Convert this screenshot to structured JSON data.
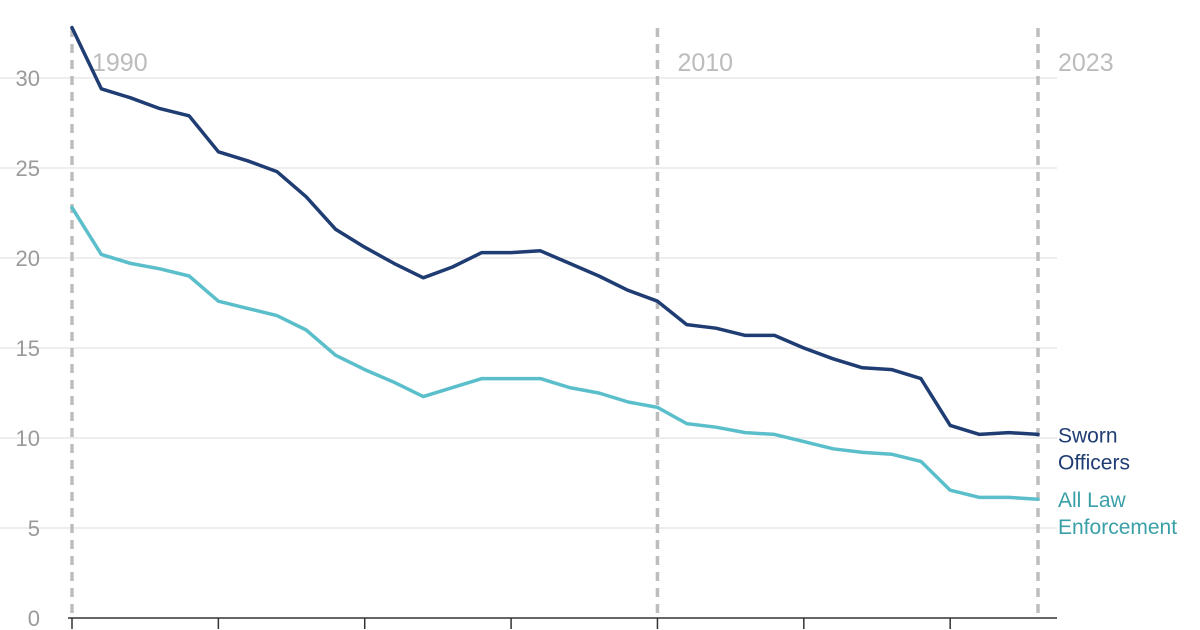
{
  "chart_data": {
    "type": "line",
    "title": "",
    "xlabel": "",
    "ylabel": "",
    "x": [
      1990,
      1991,
      1992,
      1993,
      1994,
      1995,
      1996,
      1997,
      1998,
      1999,
      2000,
      2001,
      2002,
      2003,
      2004,
      2005,
      2006,
      2007,
      2008,
      2009,
      2010,
      2011,
      2012,
      2013,
      2014,
      2015,
      2016,
      2017,
      2018,
      2019,
      2020,
      2021,
      2022,
      2023
    ],
    "xlim": [
      1990,
      2023
    ],
    "ylim": [
      0,
      33
    ],
    "yticks": [
      0,
      5,
      10,
      15,
      20,
      25,
      30
    ],
    "xtick_marks": [
      1990,
      1995,
      2000,
      2005,
      2010,
      2015,
      2020
    ],
    "grid": true,
    "reference_lines": [
      {
        "x": 1990,
        "label": "1990"
      },
      {
        "x": 2010,
        "label": "2010"
      },
      {
        "x": 2023,
        "label": "2023"
      }
    ],
    "series": [
      {
        "name": "Sworn Officers",
        "label_lines": [
          "Sworn",
          "Officers"
        ],
        "color": "#1f3d73",
        "values": [
          32.8,
          29.4,
          28.9,
          28.3,
          27.9,
          25.9,
          25.4,
          24.8,
          23.4,
          21.6,
          20.6,
          19.7,
          18.9,
          19.5,
          20.3,
          20.3,
          20.4,
          19.7,
          19.0,
          18.2,
          17.6,
          16.3,
          16.1,
          15.7,
          15.7,
          15.0,
          14.4,
          13.9,
          13.8,
          13.3,
          10.7,
          10.2,
          10.3,
          10.2
        ]
      },
      {
        "name": "All Law Enforcement",
        "label_lines": [
          "All Law",
          "Enforcement"
        ],
        "color": "#5bbfcb",
        "label_color": "#3aa0a8",
        "values": [
          22.8,
          20.2,
          19.7,
          19.4,
          19.0,
          17.6,
          17.2,
          16.8,
          16.0,
          14.6,
          13.8,
          13.1,
          12.3,
          12.8,
          13.3,
          13.3,
          13.3,
          12.8,
          12.5,
          12.0,
          11.7,
          10.8,
          10.6,
          10.3,
          10.2,
          9.8,
          9.4,
          9.2,
          9.1,
          8.7,
          7.1,
          6.7,
          6.7,
          6.6
        ]
      }
    ]
  }
}
